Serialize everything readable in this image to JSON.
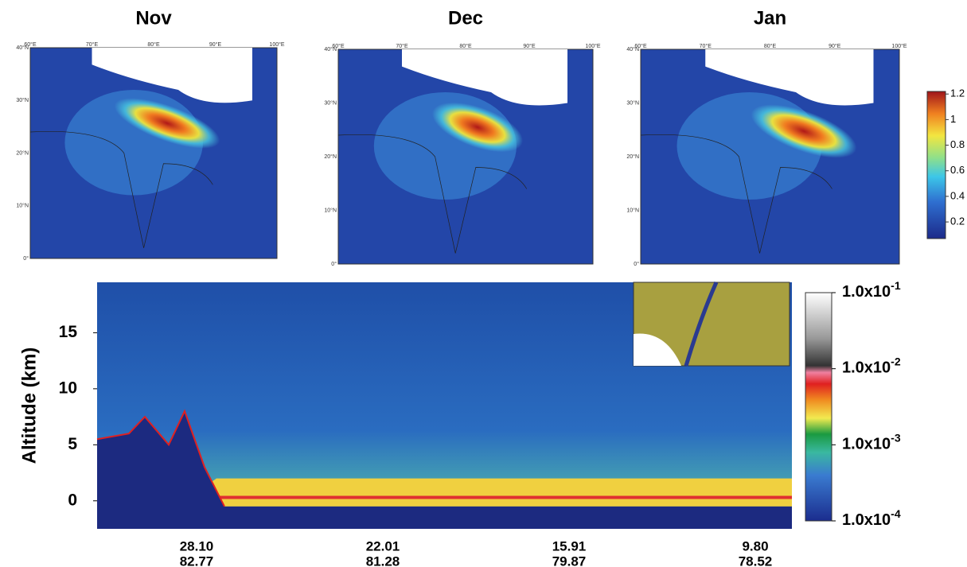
{
  "maps": [
    {
      "title": "Nov"
    },
    {
      "title": "Dec"
    },
    {
      "title": "Jan"
    }
  ],
  "map_axes": {
    "lon": [
      "60°E",
      "70°E",
      "80°E",
      "90°E",
      "100°E"
    ],
    "lat": [
      "0°",
      "10°N",
      "20°N",
      "30°N",
      "40°N"
    ]
  },
  "map_colorbar": {
    "lim": [
      0.07,
      1.22
    ],
    "ticks": [
      0.2,
      0.4,
      0.6,
      0.8,
      1,
      1.2
    ]
  },
  "curtain": {
    "ylabel": "Altitude (km)",
    "ylim": [
      -2.5,
      19.5
    ],
    "yticks": [
      0,
      5,
      10,
      15
    ],
    "xticks": [
      {
        "lat": "28.10",
        "lon": "82.77"
      },
      {
        "lat": "22.01",
        "lon": "81.28"
      },
      {
        "lat": "15.91",
        "lon": "79.87"
      },
      {
        "lat": "9.80",
        "lon": "78.52"
      }
    ],
    "colorbar_lim": [
      0.0001,
      0.1
    ],
    "colorbar_ticks": [
      {
        "value": 0.1,
        "label": "1.0x10",
        "exponent": "-1"
      },
      {
        "value": 0.01,
        "label": "1.0x10",
        "exponent": "-2"
      },
      {
        "value": 0.001,
        "label": "1.0x10",
        "exponent": "-3"
      },
      {
        "value": 0.0001,
        "label": "1.0x10",
        "exponent": "-4"
      }
    ]
  }
}
